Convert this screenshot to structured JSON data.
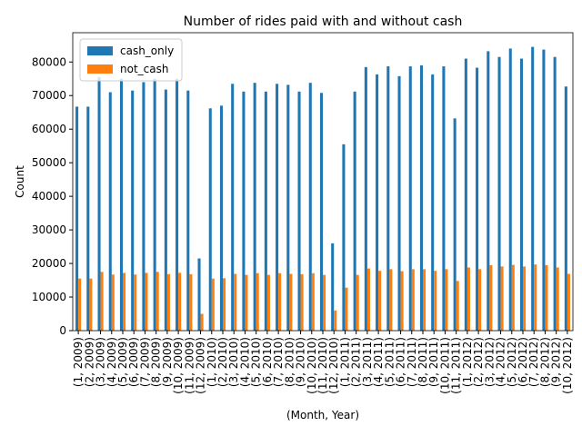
{
  "chart_data": {
    "type": "bar",
    "title": "Number of rides paid with and without cash",
    "x_label": "(Month, Year)",
    "y_label": "Count",
    "categories": [
      "(1, 2009)",
      "(2, 2009)",
      "(3, 2009)",
      "(4, 2009)",
      "(5, 2009)",
      "(6, 2009)",
      "(7, 2009)",
      "(8, 2009)",
      "(9, 2009)",
      "(10, 2009)",
      "(11, 2009)",
      "(12, 2009)",
      "(1, 2010)",
      "(2, 2010)",
      "(3, 2010)",
      "(4, 2010)",
      "(5, 2010)",
      "(6, 2010)",
      "(7, 2010)",
      "(8, 2010)",
      "(9, 2010)",
      "(10, 2010)",
      "(11, 2010)",
      "(12, 2010)",
      "(1, 2011)",
      "(2, 2011)",
      "(3, 2011)",
      "(4, 2011)",
      "(5, 2011)",
      "(6, 2011)",
      "(7, 2011)",
      "(8, 2011)",
      "(9, 2011)",
      "(10, 2011)",
      "(11, 2011)",
      "(1, 2012)",
      "(2, 2012)",
      "(3, 2012)",
      "(4, 2012)",
      "(5, 2012)",
      "(6, 2012)",
      "(7, 2012)",
      "(8, 2012)",
      "(9, 2012)",
      "(10, 2012)"
    ],
    "series": [
      {
        "name": "cash_only",
        "color": "#1f77b4",
        "values": [
          66700,
          66700,
          75500,
          71000,
          75000,
          71500,
          74000,
          75000,
          71800,
          75000,
          71500,
          21500,
          66200,
          67000,
          73500,
          71200,
          73800,
          71200,
          73500,
          73200,
          71200,
          73800,
          70800,
          26000,
          55500,
          71200,
          78500,
          76300,
          78700,
          75800,
          78700,
          79000,
          76300,
          78700,
          63200,
          81000,
          78300,
          83200,
          81500,
          84000,
          81000,
          84500,
          83700,
          81500,
          72700
        ]
      },
      {
        "name": "not_cash",
        "color": "#ff7f0e",
        "values": [
          15500,
          15500,
          17500,
          16700,
          17200,
          16700,
          17200,
          17500,
          16800,
          17200,
          16800,
          5000,
          15500,
          15600,
          16900,
          16600,
          17100,
          16600,
          17100,
          16900,
          16800,
          17100,
          16600,
          6000,
          12800,
          16600,
          18500,
          17800,
          18300,
          17700,
          18300,
          18300,
          17800,
          18300,
          14800,
          18800,
          18300,
          19500,
          19100,
          19600,
          19100,
          19700,
          19500,
          18800,
          16900
        ]
      }
    ],
    "ylim": [
      0,
      88725
    ],
    "yticks": [
      0,
      10000,
      20000,
      30000,
      40000,
      50000,
      60000,
      70000,
      80000
    ],
    "legend": "upper left"
  }
}
